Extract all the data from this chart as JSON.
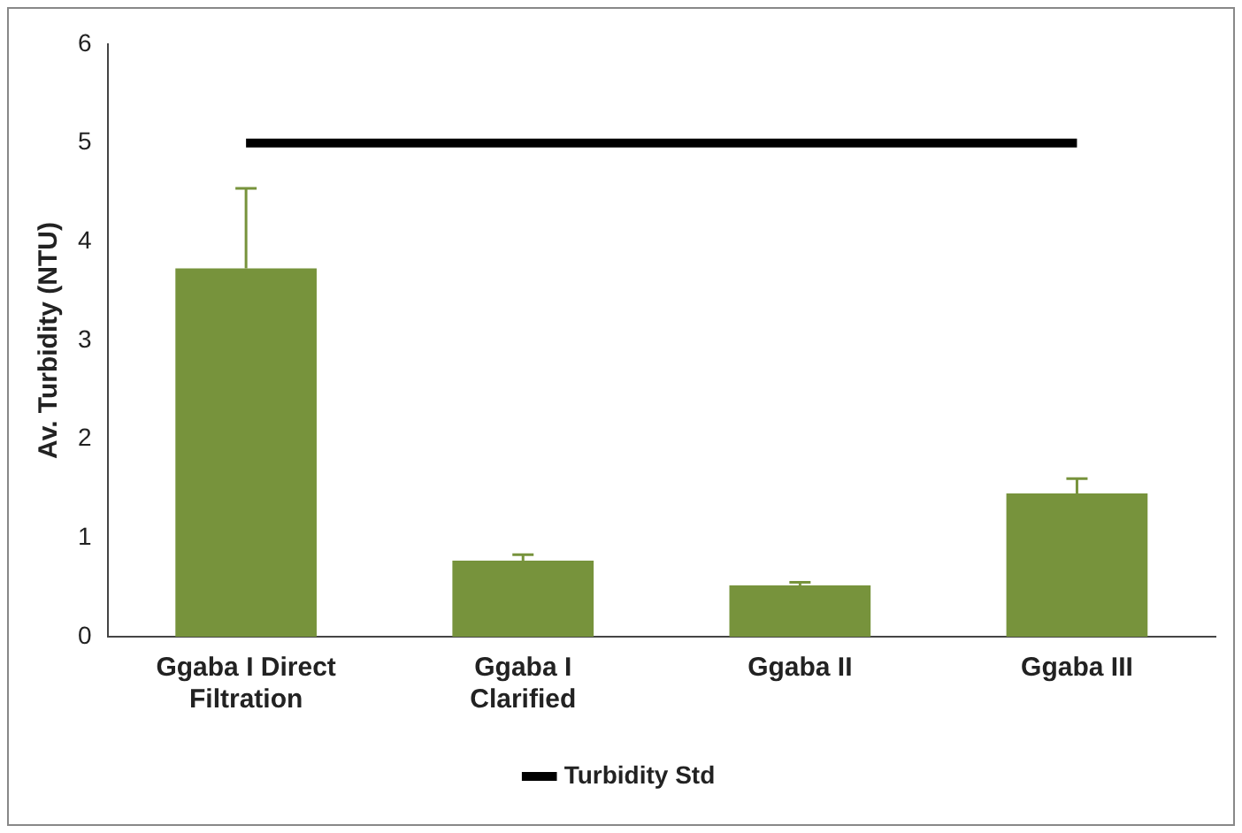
{
  "chart_data": {
    "type": "bar",
    "ylabel": "Av. Turbidity (NTU)",
    "categories": [
      "Ggaba I Direct Filtration",
      "Ggaba I Clarified",
      "Ggaba II",
      "Ggaba III"
    ],
    "series": [
      {
        "color": "#77933c",
        "values": [
          3.73,
          0.77,
          0.52,
          1.45
        ],
        "errors": [
          [
            3.73,
            4.54
          ],
          [
            0.77,
            0.83
          ],
          [
            0.52,
            0.55
          ],
          [
            1.45,
            1.6
          ]
        ]
      },
      {
        "type": "line",
        "name": "Turbidity Std",
        "color": "#000000",
        "values": [
          5,
          5,
          5,
          5
        ],
        "marker": "none"
      }
    ],
    "ylim": [
      0,
      6
    ],
    "yticks": [
      0,
      1,
      2,
      3,
      4,
      5,
      6
    ],
    "grid": false,
    "legend": "bottom"
  }
}
